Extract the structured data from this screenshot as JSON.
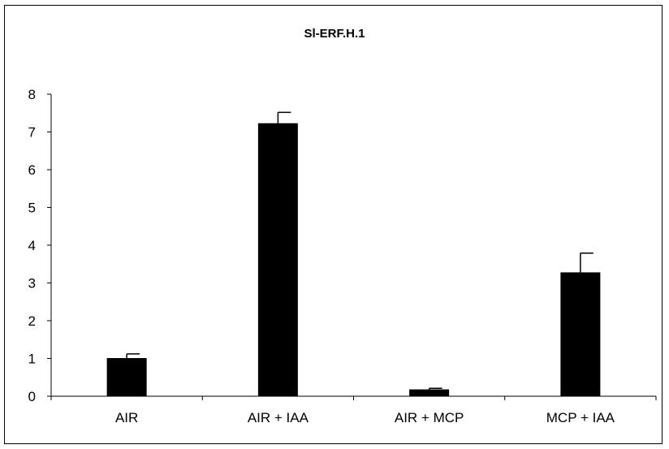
{
  "chart_data": {
    "type": "bar",
    "title": "Sl-ERF.H.1",
    "xlabel": "",
    "ylabel": "",
    "categories": [
      "AIR",
      "AIR + IAA",
      "AIR + MCP",
      "MCP + IAA"
    ],
    "values": [
      1.0,
      7.22,
      0.17,
      3.27
    ],
    "error_bars": [
      0.12,
      0.3,
      0.04,
      0.52
    ],
    "ylim": [
      0,
      8
    ],
    "yticks": [
      "0",
      "1",
      "2",
      "3",
      "4",
      "5",
      "6",
      "7",
      "8"
    ],
    "grid": false,
    "legend": "none",
    "bar_color": "#000000"
  }
}
